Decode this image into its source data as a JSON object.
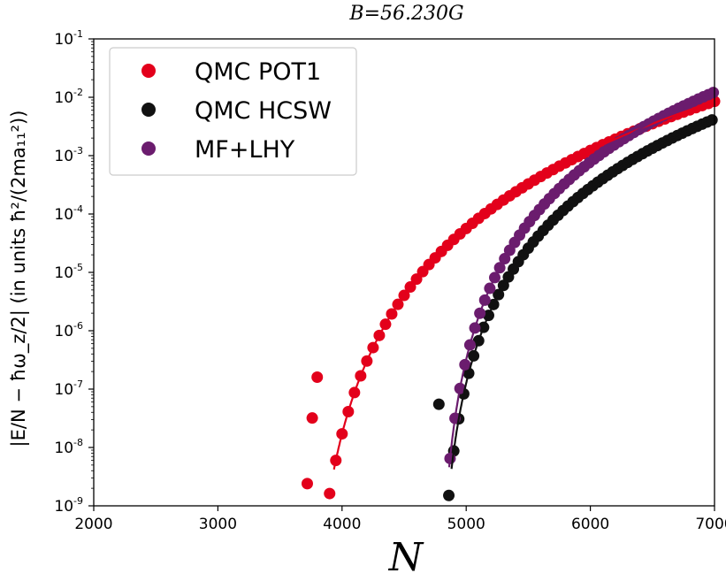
{
  "chart_data": {
    "type": "scatter",
    "title": "B=56.230G",
    "xlabel": "N",
    "ylabel": "|E/N − ħω_z/2| (in units ħ²/(2ma₁₁²))",
    "xlim": [
      2000,
      7000
    ],
    "ylim": [
      1e-09,
      0.1
    ],
    "yscale": "log",
    "grid": false,
    "legend_position": "top-left",
    "x_ticks": [
      {
        "value": 2000,
        "label": "2000"
      },
      {
        "value": 3000,
        "label": "3000"
      },
      {
        "value": 4000,
        "label": "4000"
      },
      {
        "value": 5000,
        "label": "5000"
      },
      {
        "value": 6000,
        "label": "6000"
      },
      {
        "value": 7000,
        "label": "7000"
      }
    ],
    "y_ticks": [
      {
        "value": 1e-09,
        "base": "10",
        "exp": "-9"
      },
      {
        "value": 1e-08,
        "base": "10",
        "exp": "-8"
      },
      {
        "value": 1e-07,
        "base": "10",
        "exp": "-7"
      },
      {
        "value": 1e-06,
        "base": "10",
        "exp": "-6"
      },
      {
        "value": 1e-05,
        "base": "10",
        "exp": "-5"
      },
      {
        "value": 0.0001,
        "base": "10",
        "exp": "-4"
      },
      {
        "value": 0.001,
        "base": "10",
        "exp": "-3"
      },
      {
        "value": 0.01,
        "base": "10",
        "exp": "-2"
      },
      {
        "value": 0.1,
        "base": "10",
        "exp": "-1"
      }
    ],
    "series": [
      {
        "name": "QMC POT1",
        "color": "#e3001b",
        "style": "markers+line",
        "n0": 3720,
        "log_a": -2.07,
        "s": 0.54,
        "pmax": 2.05,
        "x_range": [
          3700,
          7000
        ],
        "x_step": 50
      },
      {
        "name": "QMC HCSW",
        "color": "#111111",
        "style": "markers+line",
        "n0": 4775,
        "log_a": -2.37,
        "s": 0.54,
        "pmax": 1.75,
        "x_range": [
          4780,
          7000
        ],
        "x_step": 40
      },
      {
        "name": "MF+LHY",
        "color": "#6b1c6e",
        "style": "markers+line",
        "n0": 4772,
        "log_a": -1.91,
        "s": 0.45,
        "pmax": 1.78,
        "x_range": [
          4790,
          7000
        ],
        "x_step": 40
      }
    ],
    "special_points": [
      {
        "series": 0,
        "x": 3720,
        "y": 2.4e-09
      },
      {
        "series": 0,
        "x": 3760,
        "y": 3.2e-08
      },
      {
        "series": 0,
        "x": 3800,
        "y": 1.6e-07
      },
      {
        "series": 1,
        "x": 4780,
        "y": 5.5e-08
      }
    ]
  }
}
